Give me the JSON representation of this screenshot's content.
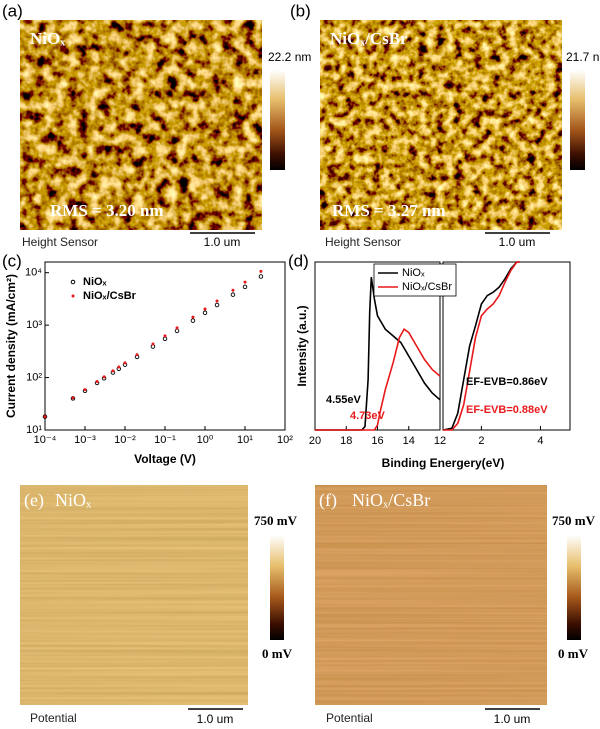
{
  "panels": {
    "a": {
      "label": "(a)",
      "title": "NiOₓ",
      "rms": "RMS = 3.20 nm",
      "colorbar_max": "22.2 nm",
      "channel": "Height Sensor",
      "scale_bar": "1.0 um"
    },
    "b": {
      "label": "(b)",
      "title": "NiOₓ/CsBr",
      "rms": "RMS = 3.27 nm",
      "colorbar_max": "21.7 nm",
      "channel": "Height Sensor",
      "scale_bar": "1.0 um"
    },
    "e": {
      "label": "(e)",
      "title": "NiOₓ",
      "colorbar_max": "750 mV",
      "colorbar_min": "0 mV",
      "channel": "Potential",
      "scale_bar": "1.0 um"
    },
    "f": {
      "label": "(f)",
      "title": "NiOₓ/CsBr",
      "colorbar_max": "750 mV",
      "colorbar_min": "0 mV",
      "channel": "Potential",
      "scale_bar": "1.0 um"
    }
  },
  "chart_data": [
    {
      "type": "scatter",
      "label": "(c)",
      "xlabel": "Voltage (V)",
      "ylabel": "Current density (mA/cm²)",
      "log_x": true,
      "log_y": true,
      "legend": "upper left",
      "x": [
        0.0001,
        0.0005,
        0.001,
        0.002,
        0.003,
        0.005,
        0.007,
        0.01,
        0.02,
        0.05,
        0.1,
        0.2,
        0.5,
        1,
        2,
        5,
        10,
        25
      ],
      "series": [
        {
          "name": "NiOₓ",
          "color": "#000000",
          "values": [
            18,
            40,
            56,
            79,
            97,
            125,
            147,
            176,
            248,
            391,
            549,
            776,
            1220,
            1719,
            2423,
            3812,
            5373,
            8460
          ]
        },
        {
          "name": "NiOₓ/CsBr",
          "color": "#e8191b",
          "values": [
            18,
            41,
            59,
            84,
            103,
            134,
            159,
            191,
            272,
            437,
            623,
            887,
            1424,
            2029,
            2893,
            4637,
            6611,
            10575
          ]
        }
      ],
      "xlim": [
        0.0001,
        100
      ],
      "xticks": [
        {
          "value": 0.0001,
          "label": "10⁻⁴"
        },
        {
          "value": 0.001,
          "label": "10⁻³"
        },
        {
          "value": 0.01,
          "label": "10⁻²"
        },
        {
          "value": 0.1,
          "label": "10⁻¹"
        },
        {
          "value": 1,
          "label": "10⁰"
        },
        {
          "value": 10,
          "label": "10¹"
        },
        {
          "value": 100,
          "label": "10²"
        }
      ],
      "ylim": [
        10,
        16000
      ],
      "yticks": [
        {
          "value": 10,
          "label": "10¹"
        },
        {
          "value": 100,
          "label": "10²"
        },
        {
          "value": 1000,
          "label": "10³"
        },
        {
          "value": 10000,
          "label": "10⁴"
        }
      ]
    },
    {
      "type": "line",
      "label": "(d)",
      "xlabel": "Binding Energery(eV)",
      "ylabel": "Intensity (a.u.)",
      "legend": "upper right",
      "ylim": [
        0,
        1
      ],
      "axes": [
        {
          "xlim": [
            20,
            12
          ],
          "xticks": [
            20,
            18,
            16,
            14,
            12
          ],
          "series": [
            {
              "name": "NiOₓ",
              "color": "#000000",
              "x": [
                20,
                17,
                16.8,
                16.6,
                16.5,
                16.4,
                16.2,
                16,
                15.5,
                15,
                14.5,
                14,
                13.5,
                13,
                12.5,
                12
              ],
              "values": [
                0,
                0,
                0.02,
                0.3,
                0.7,
                0.91,
                0.78,
                0.68,
                0.6,
                0.56,
                0.52,
                0.44,
                0.36,
                0.28,
                0.22,
                0.18
              ]
            },
            {
              "name": "NiOₓ/CsBr",
              "color": "#e8191b",
              "x": [
                20,
                16.2,
                16,
                15.8,
                15.5,
                15,
                14.6,
                14.3,
                14,
                13.5,
                13,
                12.5,
                12
              ],
              "values": [
                0,
                0,
                0.03,
                0.12,
                0.24,
                0.4,
                0.55,
                0.6,
                0.58,
                0.5,
                0.42,
                0.36,
                0.32
              ]
            }
          ]
        },
        {
          "xlim": [
            0.7,
            5
          ],
          "xticks": [
            2,
            4
          ],
          "series": [
            {
              "color": "#000000",
              "x": [
                0.7,
                1.0,
                1.2,
                1.4,
                1.6,
                1.8,
                2.0,
                2.2,
                2.4,
                2.6,
                2.8,
                3.0,
                3.2,
                3.3
              ],
              "values": [
                0,
                0.01,
                0.1,
                0.3,
                0.5,
                0.62,
                0.75,
                0.8,
                0.82,
                0.85,
                0.9,
                0.96,
                1.0,
                1.0
              ]
            },
            {
              "color": "#e8191b",
              "x": [
                0.7,
                1.0,
                1.2,
                1.4,
                1.6,
                1.8,
                2.0,
                2.2,
                2.4,
                2.6,
                2.8,
                3.0,
                3.2,
                3.3
              ],
              "values": [
                0,
                0,
                0.04,
                0.15,
                0.35,
                0.55,
                0.68,
                0.72,
                0.75,
                0.8,
                0.88,
                0.95,
                1.0,
                1.0
              ]
            }
          ]
        }
      ],
      "annotations": [
        {
          "text": "4.55eV",
          "color": "#000000"
        },
        {
          "text": "4.73eV",
          "color": "#e8191b"
        },
        {
          "text": "EF-EVB=0.86eV",
          "color": "#000000"
        },
        {
          "text": "EF-EVB=0.88eV",
          "color": "#e8191b"
        }
      ]
    }
  ]
}
